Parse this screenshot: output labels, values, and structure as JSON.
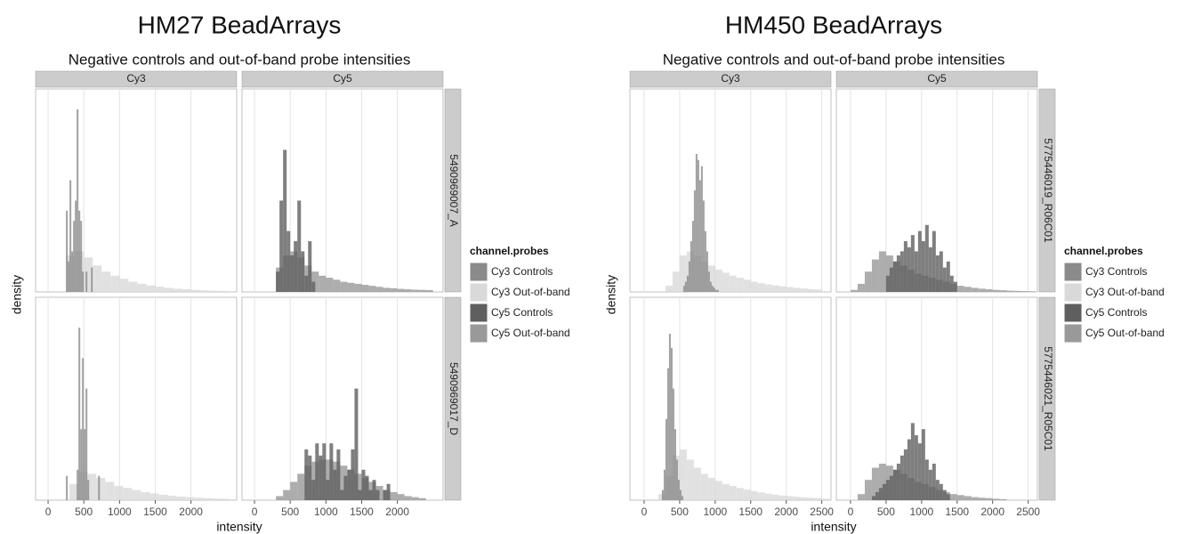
{
  "chart_data": [
    {
      "type": "histogram",
      "title": "HM27 BeadArrays",
      "subtitle": "Negative controls and out-of-band probe intensities",
      "x_label": "intensity",
      "y_label": "density",
      "columns": [
        "Cy3",
        "Cy5"
      ],
      "rows": [
        "5490969007_A",
        "5490969017_D"
      ],
      "xlim": [
        -175,
        2640
      ],
      "xticks": [
        0,
        500,
        1000,
        1500,
        2000
      ],
      "ylim": [
        0,
        100
      ],
      "grid": true,
      "legend": "right",
      "legend_title": "channel.probes",
      "series": [
        {
          "name": "Cy3 Controls",
          "color": "#8a8a8a",
          "panels": [
            {
              "bins": [
                250,
                275,
                300,
                325,
                350,
                375,
                400,
                425,
                450,
                475,
                500,
                525,
                550,
                575,
                600,
                625,
                650
              ],
              "values": [
                40,
                15,
                55,
                20,
                35,
                45,
                90,
                40,
                35,
                10,
                0,
                10,
                0,
                0,
                12,
                0
              ]
            },
            null,
            {
              "bins": [
                250,
                275,
                300,
                325,
                350,
                375,
                400,
                425,
                450,
                475,
                500,
                525,
                550,
                575,
                600,
                625,
                650,
                675,
                700,
                725,
                750
              ],
              "values": [
                12,
                0,
                0,
                0,
                0,
                0,
                15,
                85,
                35,
                70,
                35,
                55,
                10,
                0,
                0,
                0,
                0,
                0,
                12,
                0
              ]
            },
            null
          ]
        },
        {
          "name": "Cy3 Out-of-band",
          "color": "#d9d9d9",
          "panels": [
            {
              "bins": [
                250,
                375,
                500,
                625,
                750,
                875,
                1000,
                1125,
                1250,
                1375,
                1500,
                1625,
                1750,
                1875,
                2000,
                2125,
                2250,
                2375,
                2500
              ],
              "values": [
                18,
                20,
                17,
                13,
                10,
                8,
                6.5,
                5,
                4,
                3.2,
                2.6,
                2,
                1.6,
                1.3,
                1,
                0.8,
                0.6,
                0.5
              ]
            },
            null,
            {
              "bins": [
                300,
                425,
                550,
                675,
                800,
                925,
                1050,
                1175,
                1300,
                1425,
                1550,
                1675,
                1800,
                1925,
                2050,
                2175,
                2300,
                2425,
                2550
              ],
              "values": [
                8,
                14,
                13,
                11,
                9,
                7,
                6,
                5,
                4,
                3.3,
                2.7,
                2.2,
                1.8,
                1.5,
                1.2,
                1,
                0.8,
                0.7
              ]
            },
            null
          ]
        },
        {
          "name": "Cy5 Controls",
          "color": "#5f5f5f",
          "panels": [
            null,
            {
              "bins": [
                300,
                350,
                400,
                450,
                500,
                550,
                600,
                650,
                700,
                750,
                800,
                850
              ],
              "values": [
                10,
                45,
                70,
                30,
                18,
                25,
                45,
                20,
                8,
                25,
                5
              ]
            },
            null,
            {
              "bins": [
                700,
                750,
                800,
                850,
                900,
                950,
                1000,
                1050,
                1100,
                1150,
                1200,
                1250,
                1300,
                1350,
                1400,
                1450,
                1500,
                1550,
                1600,
                1650,
                1700,
                1750,
                1800,
                1850,
                1900
              ],
              "values": [
                25,
                22,
                10,
                28,
                22,
                28,
                10,
                28,
                15,
                25,
                5,
                12,
                15,
                25,
                55,
                5,
                15,
                12,
                5,
                10,
                5,
                0,
                5,
                8
              ]
            }
          ]
        },
        {
          "name": "Cy5 Out-of-band",
          "color": "#999999",
          "panels": [
            null,
            {
              "bins": [
                300,
                400,
                500,
                600,
                700,
                800,
                900,
                1000,
                1100,
                1200,
                1300,
                1400,
                1500,
                1600,
                1700,
                1800,
                1900,
                2000,
                2100,
                2200,
                2300,
                2400,
                2500
              ],
              "values": [
                12,
                18,
                20,
                17,
                13,
                10,
                8,
                7,
                6,
                5,
                4.5,
                4,
                3.5,
                3,
                2.5,
                2,
                1.8,
                1.5,
                1.3,
                1.1,
                1,
                0.9
              ]
            },
            null,
            {
              "bins": [
                300,
                400,
                500,
                600,
                700,
                800,
                900,
                1000,
                1100,
                1200,
                1300,
                1400,
                1500,
                1600,
                1700,
                1800,
                1900,
                2000,
                2100,
                2200,
                2300,
                2400
              ],
              "values": [
                2,
                5,
                9,
                13,
                17,
                19,
                20,
                20,
                19,
                17,
                15,
                13,
                11,
                9,
                7,
                5,
                4,
                3,
                2,
                1.5,
                1
              ]
            }
          ]
        }
      ]
    },
    {
      "type": "histogram",
      "title": "HM450 BeadArrays",
      "subtitle": "Negative controls and out-of-band probe intensities",
      "x_label": "intensity",
      "y_label": "density",
      "columns": [
        "Cy3",
        "Cy5"
      ],
      "rows": [
        "5775446019_R06C01",
        "5775446021_R05C01"
      ],
      "xlim": [
        -200,
        2630
      ],
      "xticks": [
        0,
        500,
        1000,
        1500,
        2000,
        2500
      ],
      "ylim": [
        0,
        100
      ],
      "grid": true,
      "legend": "right",
      "legend_title": "channel.probes",
      "series": [
        {
          "name": "Cy3 Controls",
          "color": "#8a8a8a",
          "panels": [
            {
              "bins": [
                550,
                575,
                600,
                625,
                650,
                675,
                700,
                725,
                750,
                775,
                800,
                825,
                850,
                875,
                900,
                925,
                950,
                975,
                1000,
                1025,
                1050
              ],
              "values": [
                3,
                5,
                8,
                15,
                25,
                35,
                50,
                68,
                65,
                55,
                62,
                45,
                30,
                20,
                10,
                5,
                3,
                2,
                1,
                1
              ]
            },
            null,
            {
              "bins": [
                250,
                275,
                300,
                325,
                350,
                375,
                400,
                425,
                450,
                475,
                500,
                525,
                550
              ],
              "values": [
                5,
                15,
                40,
                65,
                82,
                75,
                55,
                35,
                20,
                10,
                5,
                2
              ]
            },
            null
          ]
        },
        {
          "name": "Cy3 Out-of-band",
          "color": "#d9d9d9",
          "panels": [
            {
              "bins": [
                300,
                400,
                500,
                600,
                700,
                800,
                900,
                1000,
                1100,
                1200,
                1300,
                1400,
                1500,
                1600,
                1700,
                1800,
                1900,
                2000,
                2100,
                2200,
                2300,
                2400,
                2500
              ],
              "values": [
                3,
                10,
                18,
                20,
                18,
                15,
                13,
                11,
                9.5,
                8,
                7,
                6,
                5,
                4.3,
                3.7,
                3.2,
                2.8,
                2.4,
                2,
                1.7,
                1.4,
                1.2
              ]
            },
            null,
            {
              "bins": [
                200,
                300,
                400,
                500,
                600,
                700,
                800,
                900,
                1000,
                1100,
                1200,
                1300,
                1400,
                1500,
                1600,
                1700,
                1800,
                1900,
                2000,
                2100,
                2200,
                2300,
                2400,
                2500,
                2600
              ],
              "values": [
                3,
                12,
                22,
                25,
                20,
                16,
                13,
                11,
                9.5,
                8,
                7,
                6,
                5.2,
                4.5,
                3.8,
                3.2,
                2.7,
                2.3,
                2,
                1.7,
                1.4,
                1.2,
                1,
                0.8
              ]
            },
            null
          ]
        },
        {
          "name": "Cy5 Controls",
          "color": "#5f5f5f",
          "panels": [
            null,
            {
              "bins": [
                500,
                550,
                600,
                650,
                700,
                750,
                800,
                850,
                900,
                950,
                1000,
                1050,
                1100,
                1150,
                1200,
                1250,
                1300,
                1350,
                1400,
                1450,
                1500
              ],
              "values": [
                8,
                12,
                15,
                18,
                20,
                25,
                22,
                28,
                20,
                30,
                25,
                33,
                22,
                30,
                18,
                20,
                12,
                15,
                8,
                5
              ]
            },
            null,
            {
              "bins": [
                300,
                350,
                400,
                450,
                500,
                550,
                600,
                650,
                700,
                750,
                800,
                850,
                900,
                950,
                1000,
                1050,
                1100,
                1150,
                1200,
                1250,
                1300,
                1350,
                1400
              ],
              "values": [
                2,
                4,
                6,
                8,
                10,
                12,
                15,
                18,
                22,
                25,
                30,
                38,
                32,
                28,
                35,
                20,
                15,
                18,
                10,
                8,
                5,
                3
              ]
            }
          ]
        },
        {
          "name": "Cy5 Out-of-band",
          "color": "#999999",
          "panels": [
            null,
            {
              "bins": [
                0,
                100,
                200,
                300,
                400,
                500,
                600,
                700,
                800,
                900,
                1000,
                1100,
                1200,
                1300,
                1400,
                1500,
                1600,
                1700,
                1800,
                1900,
                2000,
                2100,
                2200,
                2300,
                2400,
                2500,
                2600
              ],
              "values": [
                1,
                4,
                10,
                16,
                20,
                18,
                15,
                13,
                11,
                9,
                8,
                7,
                6,
                5,
                4,
                3,
                2.5,
                2,
                1.6,
                1.3,
                1,
                0.8,
                0.6,
                0.5,
                0.4,
                0.3
              ]
            },
            null,
            {
              "bins": [
                100,
                200,
                300,
                400,
                500,
                600,
                700,
                800,
                900,
                1000,
                1100,
                1200,
                1300,
                1400,
                1500,
                1600,
                1700,
                1800,
                1900,
                2000,
                2100,
                2200
              ],
              "values": [
                3,
                10,
                16,
                18,
                17,
                15,
                13,
                11,
                9,
                8,
                6.5,
                5,
                4,
                3,
                2.5,
                2,
                1.5,
                1.2,
                1,
                0.7,
                0.5
              ]
            }
          ]
        }
      ]
    }
  ]
}
